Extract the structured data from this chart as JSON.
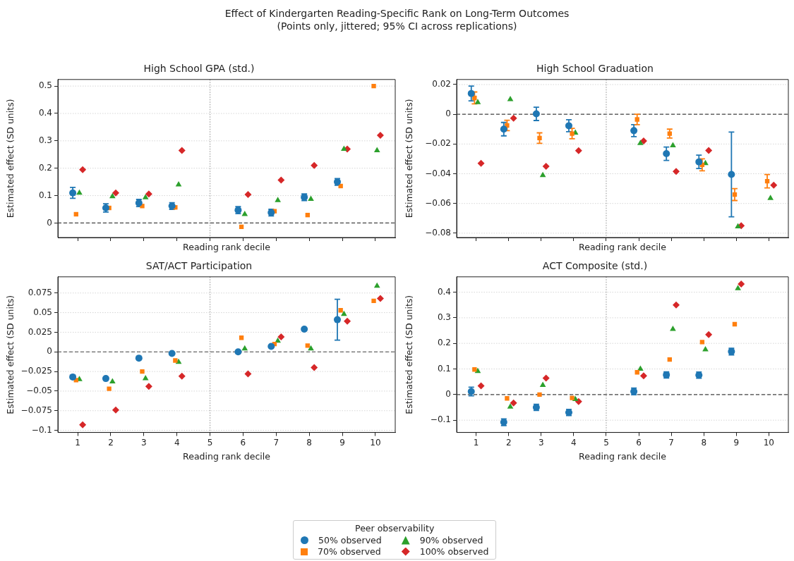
{
  "chart_data": [
    {
      "type": "scatter",
      "title": "High School GPA (std.)",
      "xlabel": "Reading rank decile",
      "ylabel": "Estimated effect (SD units)",
      "annotations": [
        "Effect of Kindergarten Reading-Specific Rank on Long-Term Outcomes",
        "(Points only, jittered; 95% CI across replications)"
      ],
      "legend": "bottom",
      "legend_title": "Peer observability",
      "xlim": [
        0.4,
        10.6
      ],
      "xticks": [
        1,
        2,
        3,
        4,
        5,
        6,
        7,
        8,
        9,
        10
      ],
      "ylim": [
        -0.053,
        0.524
      ],
      "yticks": [
        0,
        0.1,
        0.2,
        0.3,
        0.4,
        0.5
      ],
      "grid": "y",
      "tick_labels": "y",
      "ref_lines": [
        {
          "axis": "y",
          "value": 0,
          "color": "#444444",
          "line_style": "dashed"
        },
        {
          "axis": "x",
          "value": 5,
          "color": "#999999",
          "line_style": "dotted"
        }
      ],
      "series": [
        {
          "name": "50% observed",
          "color": "#1f77b4",
          "marker": "circle",
          "x": [
            0.85,
            1.85,
            2.85,
            3.85,
            5.85,
            6.85,
            7.85,
            8.85
          ],
          "values": [
            0.11,
            0.055,
            0.073,
            0.062,
            0.047,
            0.038,
            0.094,
            0.15
          ],
          "errors": [
            0.02,
            0.015,
            0.013,
            0.012,
            0.013,
            0.012,
            0.012,
            0.012
          ]
        },
        {
          "name": "70% observed",
          "color": "#ff7f0e",
          "marker": "square",
          "x": [
            0.95,
            1.95,
            2.95,
            3.95,
            5.95,
            6.95,
            7.95,
            8.95,
            9.95
          ],
          "values": [
            0.032,
            0.055,
            0.062,
            0.057,
            -0.014,
            0.043,
            0.029,
            0.135,
            0.5
          ]
        },
        {
          "name": "90% observed",
          "color": "#2ca02c",
          "marker": "triangle",
          "x": [
            1.05,
            2.05,
            3.05,
            4.05,
            6.05,
            7.05,
            8.05,
            9.05,
            10.05
          ],
          "values": [
            0.11,
            0.097,
            0.093,
            0.14,
            0.032,
            0.083,
            0.087,
            0.27,
            0.265
          ]
        },
        {
          "name": "100% observed",
          "color": "#d62728",
          "marker": "diamond",
          "x": [
            1.15,
            2.15,
            3.15,
            4.15,
            6.15,
            7.15,
            8.15,
            9.15,
            10.15
          ],
          "values": [
            0.195,
            0.11,
            0.106,
            0.265,
            0.104,
            0.157,
            0.21,
            0.27,
            0.32
          ]
        }
      ]
    },
    {
      "type": "scatter",
      "title": "High School Graduation",
      "xlabel": "Reading rank decile",
      "ylabel": "Estimated effect (SD units)",
      "xlim": [
        0.4,
        10.6
      ],
      "xticks": [
        1,
        2,
        3,
        4,
        5,
        6,
        7,
        8,
        9,
        10
      ],
      "ylim": [
        -0.0829,
        0.0234
      ],
      "yticks": [
        -0.08,
        -0.06,
        -0.04,
        -0.02,
        0,
        0.02
      ],
      "grid": "y",
      "tick_labels": "y",
      "ref_lines": [
        {
          "axis": "y",
          "value": 0,
          "color": "#444444",
          "line_style": "dashed"
        },
        {
          "axis": "x",
          "value": 5,
          "color": "#999999",
          "line_style": "dotted"
        }
      ],
      "series": [
        {
          "color": "#1f77b4",
          "marker": "circle",
          "x": [
            0.85,
            1.85,
            2.85,
            3.85,
            5.85,
            6.85,
            7.85,
            8.85
          ],
          "values": [
            0.014,
            -0.01,
            0.0003,
            -0.0077,
            -0.011,
            -0.0265,
            -0.032,
            -0.0405
          ],
          "errors": [
            0.005,
            0.0045,
            0.0045,
            0.004,
            0.004,
            0.0045,
            0.0045,
            [
              -0.069,
              -0.012
            ]
          ]
        },
        {
          "color": "#ff7f0e",
          "marker": "square",
          "x": [
            0.95,
            1.95,
            2.95,
            3.95,
            5.95,
            6.95,
            7.95,
            8.95,
            9.95
          ],
          "values": [
            0.011,
            -0.0075,
            -0.016,
            -0.013,
            -0.0035,
            -0.013,
            -0.034,
            -0.054,
            -0.045
          ],
          "errors": [
            0.004,
            0.0035,
            0.0035,
            0.0035,
            0.0035,
            0.003,
            0.004,
            0.004,
            0.0045
          ]
        },
        {
          "color": "#2ca02c",
          "marker": "triangle",
          "x": [
            1.05,
            2.05,
            3.05,
            4.05,
            6.05,
            7.05,
            8.05,
            9.05,
            10.05
          ],
          "values": [
            0.008,
            0.01,
            -0.041,
            -0.0125,
            -0.0195,
            -0.021,
            -0.033,
            -0.0755,
            -0.0565
          ]
        },
        {
          "color": "#d62728",
          "marker": "diamond",
          "x": [
            1.15,
            2.15,
            3.15,
            4.15,
            6.15,
            7.15,
            8.15,
            9.15,
            10.15
          ],
          "values": [
            -0.033,
            -0.0027,
            -0.035,
            -0.0245,
            -0.018,
            -0.0385,
            -0.0243,
            -0.075,
            -0.0477
          ]
        }
      ]
    },
    {
      "type": "scatter",
      "title": "SAT/ACT Participation",
      "xlabel": "Reading rank decile",
      "ylabel": "Estimated effect (SD units)",
      "xlim": [
        0.4,
        10.6
      ],
      "xticks": [
        1,
        2,
        3,
        4,
        5,
        6,
        7,
        8,
        9,
        10
      ],
      "ylim": [
        -0.1027,
        0.0956
      ],
      "yticks": [
        -0.1,
        -0.075,
        -0.05,
        -0.025,
        0,
        0.025,
        0.05,
        0.075
      ],
      "grid": "y",
      "ref_lines": [
        {
          "axis": "y",
          "value": 0,
          "color": "#444444",
          "line_style": "dashed"
        },
        {
          "axis": "x",
          "value": 5,
          "color": "#999999",
          "line_style": "dotted"
        }
      ],
      "series": [
        {
          "color": "#1f77b4",
          "marker": "circle",
          "x": [
            0.85,
            1.85,
            2.85,
            3.85,
            5.85,
            6.85,
            7.85,
            8.85
          ],
          "values": [
            -0.032,
            -0.034,
            -0.008,
            -0.002,
            0.0,
            0.007,
            0.029,
            0.041
          ],
          "errors": [
            null,
            null,
            null,
            null,
            null,
            null,
            null,
            [
              0.015,
              0.067
            ]
          ]
        },
        {
          "color": "#ff7f0e",
          "marker": "square",
          "x": [
            0.95,
            1.95,
            2.95,
            3.95,
            5.95,
            6.95,
            7.95,
            8.95,
            9.95
          ],
          "values": [
            -0.036,
            -0.047,
            -0.025,
            -0.011,
            0.018,
            0.01,
            0.008,
            0.053,
            0.065
          ]
        },
        {
          "color": "#2ca02c",
          "marker": "triangle",
          "x": [
            1.05,
            2.05,
            3.05,
            4.05,
            6.05,
            7.05,
            8.05,
            9.05,
            10.05
          ],
          "values": [
            -0.035,
            -0.038,
            -0.034,
            -0.013,
            0.004,
            0.014,
            0.004,
            0.048,
            0.084
          ]
        },
        {
          "color": "#d62728",
          "marker": "diamond",
          "x": [
            1.15,
            2.15,
            3.15,
            4.15,
            6.15,
            7.15,
            8.15,
            9.15,
            10.15
          ],
          "values": [
            -0.093,
            -0.074,
            -0.044,
            -0.031,
            -0.028,
            0.019,
            -0.02,
            0.039,
            0.068
          ]
        }
      ]
    },
    {
      "type": "scatter",
      "title": "ACT Composite (std.)",
      "xlabel": "Reading rank decile",
      "ylabel": "Estimated effect (SD units)",
      "xlim": [
        0.4,
        10.6
      ],
      "xticks": [
        1,
        2,
        3,
        4,
        5,
        6,
        7,
        8,
        9,
        10
      ],
      "ylim": [
        -0.148,
        0.46
      ],
      "yticks": [
        -0.1,
        0,
        0.1,
        0.2,
        0.3,
        0.4
      ],
      "grid": "y",
      "ref_lines": [
        {
          "axis": "y",
          "value": 0,
          "color": "#444444",
          "line_style": "dashed"
        },
        {
          "axis": "x",
          "value": 5,
          "color": "#999999",
          "line_style": "dotted"
        }
      ],
      "series": [
        {
          "color": "#1f77b4",
          "marker": "circle",
          "x": [
            0.85,
            1.85,
            2.85,
            3.85,
            5.85,
            6.85,
            7.85,
            8.85
          ],
          "values": [
            0.012,
            -0.108,
            -0.05,
            -0.07,
            0.012,
            0.077,
            0.076,
            0.168
          ],
          "errors": [
            0.017,
            0.013,
            0.012,
            0.012,
            0.013,
            0.012,
            0.012,
            0.013
          ]
        },
        {
          "color": "#ff7f0e",
          "marker": "square",
          "x": [
            0.95,
            1.95,
            2.95,
            3.95,
            5.95,
            6.95,
            7.95,
            8.95
          ],
          "values": [
            0.098,
            -0.015,
            0.0,
            -0.013,
            0.087,
            0.137,
            0.205,
            0.275
          ]
        },
        {
          "color": "#2ca02c",
          "marker": "triangle",
          "x": [
            1.05,
            2.05,
            3.05,
            4.05,
            6.05,
            7.05,
            8.05,
            9.05
          ],
          "values": [
            0.091,
            -0.048,
            0.037,
            -0.018,
            0.1,
            0.256,
            0.176,
            0.415
          ]
        },
        {
          "color": "#d62728",
          "marker": "diamond",
          "x": [
            1.15,
            2.15,
            3.15,
            4.15,
            6.15,
            7.15,
            8.15,
            9.15
          ],
          "values": [
            0.034,
            -0.033,
            0.064,
            -0.027,
            0.073,
            0.35,
            0.234,
            0.432
          ]
        }
      ]
    }
  ]
}
